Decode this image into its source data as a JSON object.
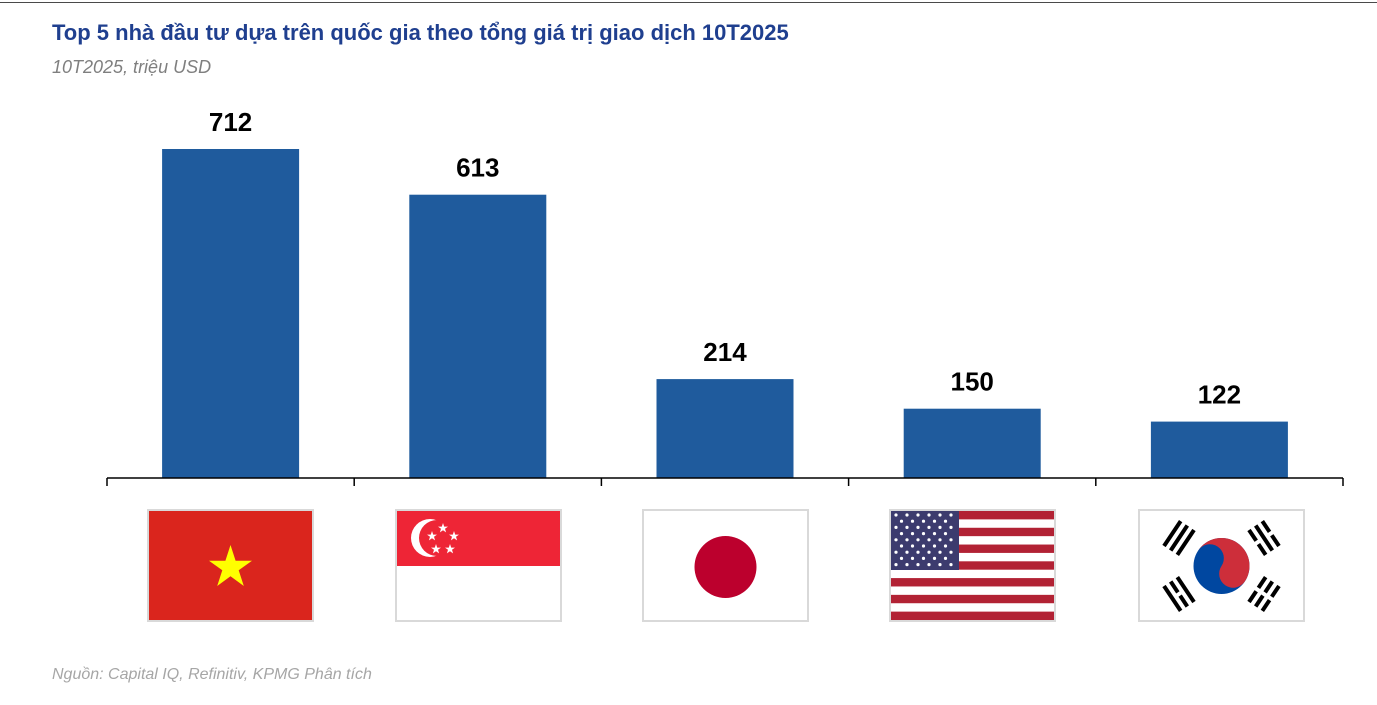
{
  "chart_data": {
    "type": "bar",
    "title": "Top 5 nhà đầu tư dựa trên quốc gia theo tổng giá trị giao dịch 10T2025",
    "subtitle": "10T2025, triệu USD",
    "categories": [
      "vietnam-flag",
      "singapore-flag",
      "japan-flag",
      "usa-flag",
      "south-korea-flag"
    ],
    "values": [
      712,
      613,
      214,
      150,
      122
    ],
    "data_labels": [
      "712",
      "613",
      "214",
      "150",
      "122"
    ],
    "ylim": [
      0,
      712
    ],
    "grid": false,
    "legend": "none"
  },
  "source": "Nguồn: Capital IQ, Refinitiv, KPMG Phân tích",
  "colors": {
    "bar": "#1f5b9d",
    "title": "#1f3f8f",
    "subtitle": "#7f7f7f",
    "source": "#a6a6a6",
    "axis": "#000000",
    "flag_red": "#da251d",
    "flag_yellow": "#ffff00",
    "sg_red": "#ee2536",
    "jp_red": "#bc002d",
    "us_red": "#b22234",
    "us_blue": "#3c3b6e",
    "kr_red": "#cd2e3a",
    "kr_blue": "#0047a0"
  }
}
